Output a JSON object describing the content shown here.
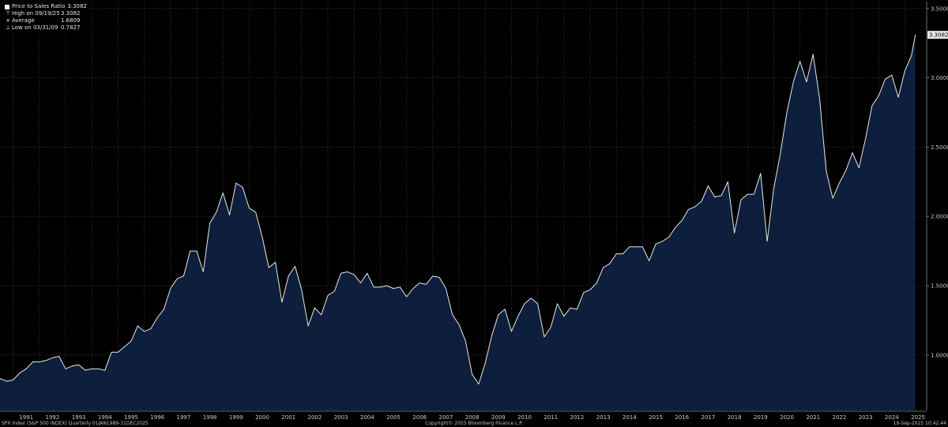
{
  "legend": {
    "series_label": "Price to Sales Ratio",
    "series_value": "3.3082",
    "high_label": "High on 09/19/25",
    "high_value": "3.3082",
    "avg_label": "Average",
    "avg_value": "1.6809",
    "low_label": "Low on 03/31/09",
    "low_value": "0.7827"
  },
  "footer": {
    "left": "SPX Index (S&P 500 INDEX)  Quarterly 01JAN1989-31DEC2025",
    "center": "Copyright© 2025 Bloomberg Finance L.P.",
    "right": "19-Sep-2025 10:42:44"
  },
  "colors": {
    "background": "#000000",
    "area_fill": "#0d1f3c",
    "line": "#e8e8e8",
    "grid": "#4a4a4a",
    "text": "#cccccc"
  },
  "chart_data": {
    "type": "area",
    "series": [
      {
        "name": "Price to Sales Ratio",
        "last_value": "3.3082"
      }
    ],
    "ylim": [
      0.6,
      3.55
    ],
    "yticks": [
      {
        "value": 1.0,
        "label": "1.0000"
      },
      {
        "value": 1.5,
        "label": "1.5000"
      },
      {
        "value": 2.0,
        "label": "2.0000"
      },
      {
        "value": 2.5,
        "label": "2.5000"
      },
      {
        "value": 3.0,
        "label": "3.0000"
      },
      {
        "value": 3.5,
        "label": "3.5000"
      }
    ],
    "xlim": [
      1990.5,
      2025.8
    ],
    "xticks": [
      "1991",
      "1992",
      "1993",
      "1994",
      "1995",
      "1996",
      "1997",
      "1998",
      "1999",
      "2000",
      "2001",
      "2002",
      "2003",
      "2004",
      "2005",
      "2006",
      "2007",
      "2008",
      "2009",
      "2010",
      "2011",
      "2012",
      "2013",
      "2014",
      "2015",
      "2016",
      "2017",
      "2018",
      "2019",
      "2020",
      "2021",
      "2022",
      "2023",
      "2024",
      "2025"
    ],
    "grid": true,
    "points": [
      [
        1990.5,
        0.83
      ],
      [
        1990.75,
        0.81
      ],
      [
        1991.0,
        0.82
      ],
      [
        1991.25,
        0.87
      ],
      [
        1991.5,
        0.9
      ],
      [
        1991.75,
        0.95
      ],
      [
        1992.0,
        0.95
      ],
      [
        1992.25,
        0.96
      ],
      [
        1992.5,
        0.98
      ],
      [
        1992.75,
        0.99
      ],
      [
        1993.0,
        0.9
      ],
      [
        1993.25,
        0.92
      ],
      [
        1993.5,
        0.93
      ],
      [
        1993.75,
        0.89
      ],
      [
        1994.0,
        0.9
      ],
      [
        1994.25,
        0.9
      ],
      [
        1994.5,
        0.89
      ],
      [
        1994.75,
        1.02
      ],
      [
        1995.0,
        1.02
      ],
      [
        1995.25,
        1.06
      ],
      [
        1995.5,
        1.1
      ],
      [
        1995.75,
        1.21
      ],
      [
        1996.0,
        1.17
      ],
      [
        1996.25,
        1.19
      ],
      [
        1996.5,
        1.27
      ],
      [
        1996.75,
        1.33
      ],
      [
        1997.0,
        1.48
      ],
      [
        1997.25,
        1.55
      ],
      [
        1997.5,
        1.57
      ],
      [
        1997.75,
        1.75
      ],
      [
        1998.0,
        1.75
      ],
      [
        1998.25,
        1.6
      ],
      [
        1998.5,
        1.95
      ],
      [
        1998.75,
        2.03
      ],
      [
        1999.0,
        2.17
      ],
      [
        1999.25,
        2.01
      ],
      [
        1999.5,
        2.24
      ],
      [
        1999.75,
        2.21
      ],
      [
        2000.0,
        2.06
      ],
      [
        2000.25,
        2.03
      ],
      [
        2000.5,
        1.85
      ],
      [
        2000.75,
        1.63
      ],
      [
        2001.0,
        1.67
      ],
      [
        2001.25,
        1.38
      ],
      [
        2001.5,
        1.57
      ],
      [
        2001.75,
        1.64
      ],
      [
        2002.0,
        1.47
      ],
      [
        2002.25,
        1.21
      ],
      [
        2002.5,
        1.34
      ],
      [
        2002.75,
        1.29
      ],
      [
        2003.0,
        1.43
      ],
      [
        2003.25,
        1.46
      ],
      [
        2003.5,
        1.59
      ],
      [
        2003.75,
        1.6
      ],
      [
        2004.0,
        1.58
      ],
      [
        2004.25,
        1.52
      ],
      [
        2004.5,
        1.59
      ],
      [
        2004.75,
        1.49
      ],
      [
        2005.0,
        1.49
      ],
      [
        2005.25,
        1.5
      ],
      [
        2005.5,
        1.48
      ],
      [
        2005.75,
        1.49
      ],
      [
        2006.0,
        1.42
      ],
      [
        2006.25,
        1.48
      ],
      [
        2006.5,
        1.52
      ],
      [
        2006.75,
        1.51
      ],
      [
        2007.0,
        1.57
      ],
      [
        2007.25,
        1.56
      ],
      [
        2007.5,
        1.48
      ],
      [
        2007.75,
        1.29
      ],
      [
        2008.0,
        1.22
      ],
      [
        2008.25,
        1.1
      ],
      [
        2008.5,
        0.86
      ],
      [
        2008.75,
        0.79
      ],
      [
        2009.0,
        0.94
      ],
      [
        2009.25,
        1.14
      ],
      [
        2009.5,
        1.29
      ],
      [
        2009.75,
        1.33
      ],
      [
        2010.0,
        1.17
      ],
      [
        2010.25,
        1.28
      ],
      [
        2010.5,
        1.37
      ],
      [
        2010.75,
        1.41
      ],
      [
        2011.0,
        1.37
      ],
      [
        2011.25,
        1.13
      ],
      [
        2011.5,
        1.2
      ],
      [
        2011.75,
        1.37
      ],
      [
        2012.0,
        1.28
      ],
      [
        2012.25,
        1.34
      ],
      [
        2012.5,
        1.33
      ],
      [
        2012.75,
        1.45
      ],
      [
        2013.0,
        1.47
      ],
      [
        2013.25,
        1.52
      ],
      [
        2013.5,
        1.63
      ],
      [
        2013.75,
        1.66
      ],
      [
        2014.0,
        1.73
      ],
      [
        2014.25,
        1.73
      ],
      [
        2014.5,
        1.78
      ],
      [
        2014.75,
        1.78
      ],
      [
        2015.0,
        1.78
      ],
      [
        2015.25,
        1.68
      ],
      [
        2015.5,
        1.8
      ],
      [
        2015.75,
        1.82
      ],
      [
        2016.0,
        1.85
      ],
      [
        2016.25,
        1.92
      ],
      [
        2016.5,
        1.97
      ],
      [
        2016.75,
        2.05
      ],
      [
        2017.0,
        2.07
      ],
      [
        2017.25,
        2.11
      ],
      [
        2017.5,
        2.22
      ],
      [
        2017.75,
        2.14
      ],
      [
        2018.0,
        2.15
      ],
      [
        2018.25,
        2.25
      ],
      [
        2018.5,
        1.88
      ],
      [
        2018.75,
        2.12
      ],
      [
        2019.0,
        2.16
      ],
      [
        2019.25,
        2.16
      ],
      [
        2019.5,
        2.31
      ],
      [
        2019.75,
        1.82
      ],
      [
        2020.0,
        2.2
      ],
      [
        2020.25,
        2.45
      ],
      [
        2020.5,
        2.75
      ],
      [
        2020.75,
        2.97
      ],
      [
        2021.0,
        3.12
      ],
      [
        2021.25,
        2.97
      ],
      [
        2021.5,
        3.17
      ],
      [
        2021.75,
        2.85
      ],
      [
        2022.0,
        2.33
      ],
      [
        2022.25,
        2.13
      ],
      [
        2022.5,
        2.24
      ],
      [
        2022.75,
        2.33
      ],
      [
        2023.0,
        2.46
      ],
      [
        2023.25,
        2.35
      ],
      [
        2023.5,
        2.56
      ],
      [
        2023.75,
        2.8
      ],
      [
        2024.0,
        2.87
      ],
      [
        2024.25,
        2.99
      ],
      [
        2024.5,
        3.02
      ],
      [
        2024.75,
        2.86
      ],
      [
        2025.0,
        3.05
      ],
      [
        2025.25,
        3.16
      ],
      [
        2025.4,
        3.31
      ]
    ]
  }
}
